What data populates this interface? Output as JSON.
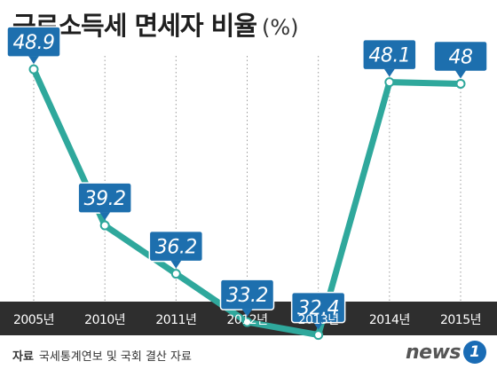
{
  "header": {
    "title": "근로소득세 면세자 비율",
    "unit": "(%)"
  },
  "chart_data": {
    "type": "line",
    "title": "근로소득세 면세자 비율",
    "unit": "(%)",
    "categories": [
      "2005년",
      "2010년",
      "2011년",
      "2012년",
      "2013년",
      "2014년",
      "2015년"
    ],
    "series": [
      {
        "values": [
          48.9,
          39.2,
          36.2,
          33.2,
          32.4,
          48.1,
          48
        ],
        "labels": [
          "48.9",
          "39.2",
          "36.2",
          "33.2",
          "32.4",
          "48.1",
          "48"
        ]
      }
    ],
    "ylim": [
      31.0,
      51.0
    ],
    "grid": "vertical dotted lines at each category",
    "colors": {
      "line": "#2fa89c",
      "label_box": "#1d6fae",
      "label_border": "#ffffff",
      "axis_band": "#2e2e2e",
      "axis_text": "#ffffff",
      "marker_fill": "#ffffff"
    }
  },
  "footer": {
    "source_label": "자료",
    "source_text": "국세통계연보 및 국회 결산 자료",
    "logo_text": "news",
    "logo_mark": "1"
  }
}
